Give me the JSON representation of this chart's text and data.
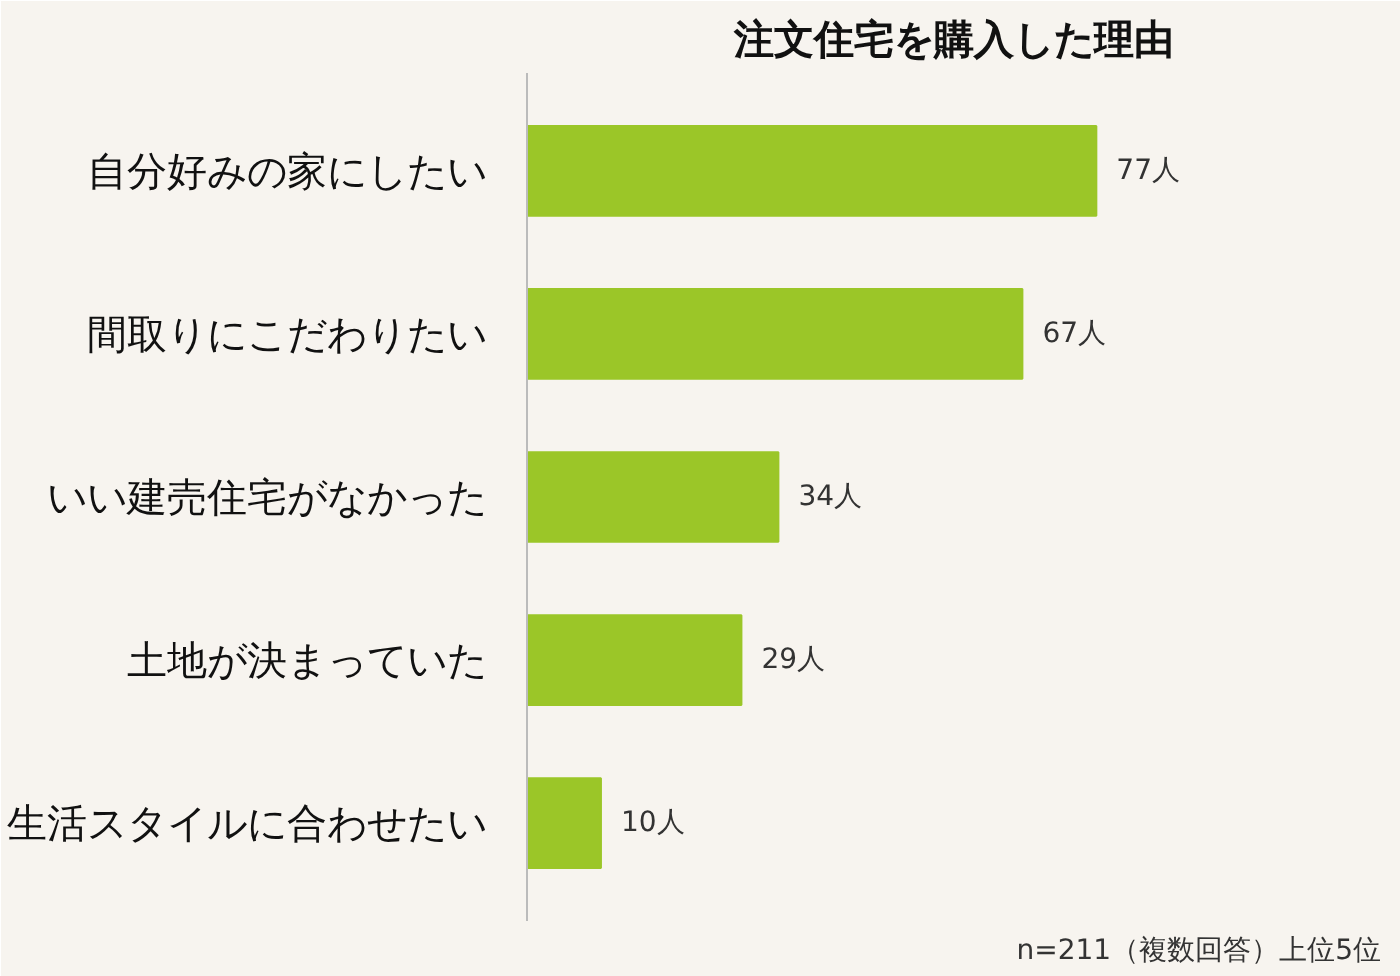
{
  "chart_data": {
    "type": "bar",
    "orientation": "horizontal",
    "title": "注文住宅を購入した理由",
    "categories": [
      "自分好みの家にしたい",
      "間取りにこだわりたい",
      "いい建売住宅がなかった",
      "土地が決まっていた",
      "生活スタイルに合わせたい"
    ],
    "values": [
      77,
      67,
      34,
      29,
      10
    ],
    "color": "#9bc628",
    "value_labels": [
      "77人",
      "67人",
      "34人",
      "29人",
      "10人"
    ],
    "annotations": [
      "n=211（複数回答）上位5位"
    ],
    "tick_labels": "y",
    "grid": false
  }
}
